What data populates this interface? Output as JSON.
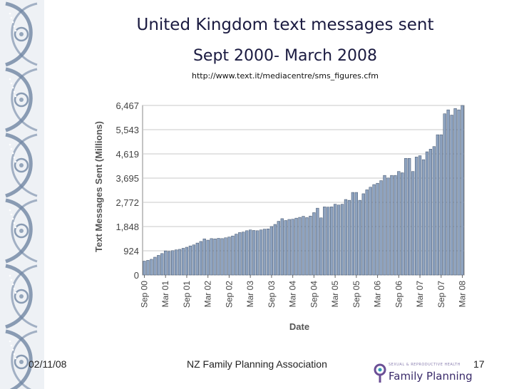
{
  "slide": {
    "title": "United Kingdom text messages sent",
    "subtitle": "Sept 2000- March 2008",
    "source_url": "http://www.text.it/mediacentre/sms_figures.cfm",
    "footer_date": "02/11/08",
    "footer_org": "NZ Family Planning Association",
    "page_number": "17",
    "logo_text": "Family Planning",
    "logo_small": "SEXUAL & REPRODUCTIVE HEALTH"
  },
  "colors": {
    "bar": "#8ea3c0",
    "bar_edge": "#3f5068",
    "grid": "#c9c9c9",
    "title": "#1a1a40",
    "border_ink": "#6f86a3",
    "logo_purple": "#6b4f96",
    "logo_teal": "#2f9fb5"
  },
  "chart_data": {
    "type": "bar",
    "title": "",
    "xlabel": "Date",
    "ylabel": "Text Messages Sent (Millions)",
    "ylim": [
      0,
      6467
    ],
    "yticks": [
      0,
      924,
      1848,
      2772,
      3695,
      4619,
      5543,
      6467
    ],
    "ytick_labels": [
      "0",
      "924",
      "1,848",
      "2,772",
      "3,695",
      "4,619",
      "5,543",
      "6,467"
    ],
    "grid": true,
    "start_month": "Sep 00",
    "xtick_labels": [
      "Sep 00",
      "Mar 01",
      "Sep 01",
      "Mar 02",
      "Sep 02",
      "Mar 03",
      "Sep 03",
      "Mar 04",
      "Sep 04",
      "Mar 05",
      "Sep 05",
      "Mar 06",
      "Sep 06",
      "Mar 07",
      "Sep 07",
      "Mar 08"
    ],
    "values": [
      530,
      560,
      600,
      680,
      750,
      820,
      920,
      900,
      930,
      960,
      980,
      1020,
      1060,
      1110,
      1150,
      1220,
      1280,
      1380,
      1330,
      1390,
      1380,
      1400,
      1390,
      1420,
      1450,
      1490,
      1560,
      1620,
      1640,
      1690,
      1720,
      1700,
      1690,
      1720,
      1750,
      1760,
      1850,
      1930,
      2050,
      2150,
      2080,
      2120,
      2130,
      2170,
      2200,
      2240,
      2190,
      2250,
      2380,
      2550,
      2180,
      2600,
      2590,
      2600,
      2700,
      2670,
      2700,
      2880,
      2850,
      3150,
      3150,
      2850,
      3100,
      3250,
      3350,
      3450,
      3500,
      3600,
      3800,
      3700,
      3800,
      3800,
      3950,
      3900,
      4450,
      4450,
      3950,
      4500,
      4550,
      4400,
      4700,
      4800,
      4900,
      5350,
      5350,
      6150,
      6300,
      6100,
      6350,
      6300,
      6467
    ]
  }
}
